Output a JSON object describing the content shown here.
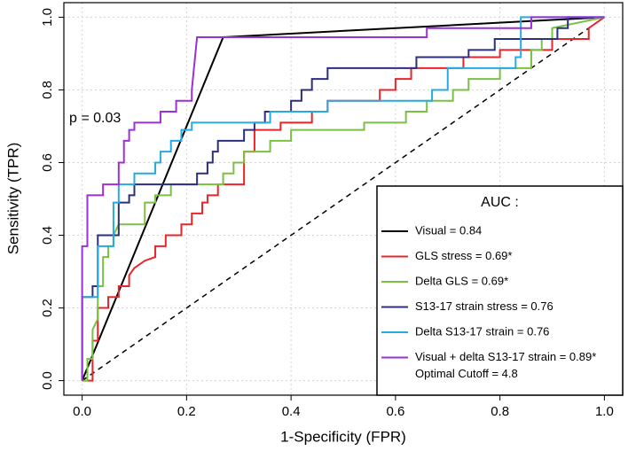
{
  "chart_data": {
    "type": "line",
    "xlabel": "1-Specificity (FPR)",
    "ylabel": "Sensitivity (TPR)",
    "xlim": [
      -0.035,
      1.035
    ],
    "ylim": [
      -0.04,
      1.04
    ],
    "xticks": [
      {
        "value": 0,
        "label": "0.0"
      },
      0.2,
      0.4,
      0.6,
      0.8,
      {
        "value": 1,
        "label": "1.0"
      }
    ],
    "yticks": [
      {
        "value": 0,
        "label": "0.0"
      },
      0.2,
      0.4,
      0.6,
      0.8,
      {
        "value": 1,
        "label": "1.0"
      }
    ],
    "grid": true,
    "legend_title": "AUC :",
    "legend_note": "Optimal Cutoff = 4.8",
    "annotation": "p = 0.03",
    "series": [
      {
        "name": "Visual = 0.84",
        "color": "#000000",
        "x": [
          0,
          0.27,
          1
        ],
        "values": [
          0,
          0.945,
          1
        ]
      },
      {
        "name": "GLS stress = 0.69*",
        "color": "#e8252a",
        "x": [
          0,
          0.02,
          0.02,
          0.03,
          0.03,
          0.05,
          0.05,
          0.07,
          0.07,
          0.09,
          0.09,
          0.1,
          0.12,
          0.14,
          0.14,
          0.16,
          0.16,
          0.19,
          0.19,
          0.21,
          0.21,
          0.23,
          0.23,
          0.24,
          0.24,
          0.26,
          0.26,
          0.31,
          0.31,
          0.33,
          0.33,
          0.38,
          0.38,
          0.44,
          0.44,
          0.47,
          0.47,
          0.57,
          0.57,
          0.6,
          0.6,
          0.63,
          0.63,
          0.73,
          0.73,
          0.8,
          0.8,
          0.9,
          0.9,
          0.97,
          0.97,
          1
        ],
        "values": [
          0,
          0,
          0.11,
          0.11,
          0.2,
          0.2,
          0.23,
          0.23,
          0.26,
          0.26,
          0.29,
          0.31,
          0.33,
          0.34,
          0.37,
          0.37,
          0.4,
          0.4,
          0.43,
          0.43,
          0.46,
          0.46,
          0.49,
          0.49,
          0.51,
          0.51,
          0.54,
          0.54,
          0.63,
          0.63,
          0.69,
          0.69,
          0.71,
          0.71,
          0.74,
          0.74,
          0.77,
          0.77,
          0.8,
          0.8,
          0.83,
          0.83,
          0.86,
          0.86,
          0.89,
          0.89,
          0.91,
          0.91,
          0.94,
          0.94,
          0.97,
          1
        ]
      },
      {
        "name": "Delta GLS = 0.69*",
        "color": "#7ac143",
        "x": [
          0,
          0.01,
          0.01,
          0.02,
          0.02,
          0.03,
          0.03,
          0.04,
          0.04,
          0.05,
          0.05,
          0.06,
          0.06,
          0.07,
          0.12,
          0.12,
          0.14,
          0.14,
          0.17,
          0.17,
          0.27,
          0.27,
          0.29,
          0.29,
          0.31,
          0.31,
          0.36,
          0.36,
          0.4,
          0.4,
          0.54,
          0.54,
          0.62,
          0.62,
          0.66,
          0.66,
          0.71,
          0.71,
          0.74,
          0.74,
          0.8,
          0.8,
          0.86,
          0.86,
          0.88,
          0.88,
          0.9,
          0.9,
          1
        ],
        "values": [
          0,
          0,
          0.06,
          0.06,
          0.14,
          0.17,
          0.26,
          0.26,
          0.34,
          0.34,
          0.37,
          0.37,
          0.4,
          0.43,
          0.43,
          0.49,
          0.49,
          0.51,
          0.51,
          0.54,
          0.54,
          0.57,
          0.57,
          0.6,
          0.6,
          0.63,
          0.63,
          0.66,
          0.66,
          0.69,
          0.69,
          0.71,
          0.71,
          0.74,
          0.74,
          0.77,
          0.77,
          0.8,
          0.8,
          0.83,
          0.83,
          0.86,
          0.86,
          0.91,
          0.91,
          0.94,
          0.94,
          0.97,
          1
        ]
      },
      {
        "name": "S13-17 strain stress = 0.76",
        "color": "#2b2f7e",
        "x": [
          0,
          0,
          0.02,
          0.02,
          0.03,
          0.03,
          0.07,
          0.07,
          0.09,
          0.09,
          0.1,
          0.1,
          0.22,
          0.22,
          0.24,
          0.24,
          0.25,
          0.25,
          0.26,
          0.26,
          0.31,
          0.31,
          0.33,
          0.33,
          0.35,
          0.35,
          0.4,
          0.4,
          0.42,
          0.42,
          0.44,
          0.44,
          0.47,
          0.47,
          0.64,
          0.64,
          0.74,
          0.74,
          0.79,
          0.79,
          0.91,
          0.91,
          0.93,
          0.93,
          1
        ],
        "values": [
          0,
          0.23,
          0.23,
          0.26,
          0.26,
          0.4,
          0.4,
          0.49,
          0.49,
          0.51,
          0.51,
          0.54,
          0.54,
          0.57,
          0.57,
          0.6,
          0.6,
          0.63,
          0.63,
          0.66,
          0.66,
          0.69,
          0.69,
          0.71,
          0.71,
          0.74,
          0.74,
          0.77,
          0.77,
          0.8,
          0.8,
          0.83,
          0.83,
          0.86,
          0.86,
          0.89,
          0.89,
          0.91,
          0.91,
          0.94,
          0.94,
          0.97,
          0.97,
          1,
          1
        ]
      },
      {
        "name": "Delta S13-17 strain = 0.76",
        "color": "#27aae1",
        "x": [
          0,
          0,
          0.03,
          0.03,
          0.06,
          0.06,
          0.07,
          0.07,
          0.1,
          0.1,
          0.14,
          0.14,
          0.15,
          0.15,
          0.17,
          0.17,
          0.19,
          0.19,
          0.21,
          0.21,
          0.36,
          0.36,
          0.47,
          0.47,
          0.67,
          0.67,
          0.7,
          0.7,
          0.83,
          0.83,
          0.84,
          0.84,
          1
        ],
        "values": [
          0,
          0.23,
          0.23,
          0.37,
          0.37,
          0.49,
          0.49,
          0.54,
          0.54,
          0.57,
          0.57,
          0.6,
          0.6,
          0.63,
          0.63,
          0.66,
          0.66,
          0.69,
          0.69,
          0.71,
          0.71,
          0.74,
          0.74,
          0.77,
          0.77,
          0.8,
          0.8,
          0.86,
          0.86,
          0.89,
          0.89,
          1,
          1
        ]
      },
      {
        "name": "Visual + delta S13-17 strain = 0.89*",
        "color": "#9b30d9",
        "x": [
          0,
          0,
          0.01,
          0.01,
          0.04,
          0.04,
          0.07,
          0.07,
          0.08,
          0.08,
          0.09,
          0.09,
          0.1,
          0.1,
          0.15,
          0.15,
          0.18,
          0.18,
          0.21,
          0.21,
          0.22,
          0.66,
          0.66,
          0.86,
          0.86,
          1
        ],
        "values": [
          0,
          0.37,
          0.37,
          0.51,
          0.51,
          0.54,
          0.54,
          0.6,
          0.6,
          0.66,
          0.66,
          0.69,
          0.69,
          0.71,
          0.71,
          0.74,
          0.74,
          0.77,
          0.77,
          0.8,
          0.945,
          0.945,
          0.97,
          0.97,
          1,
          1
        ]
      }
    ]
  }
}
